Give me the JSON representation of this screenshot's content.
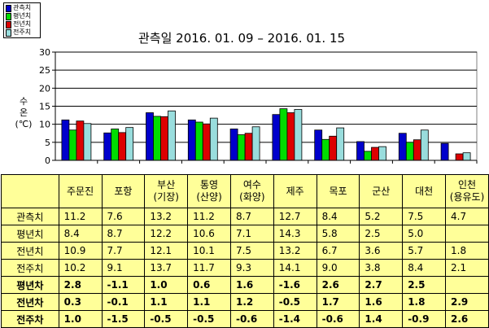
{
  "legend": [
    {
      "name": "관측치",
      "color": "#0000cc"
    },
    {
      "name": "평년치",
      "color": "#00dd00"
    },
    {
      "name": "전년치",
      "color": "#dd0000"
    },
    {
      "name": "전주치",
      "color": "#99dddd"
    }
  ],
  "chart_data": {
    "type": "bar",
    "title": "관측일 2016. 01. 09 – 2016. 01. 15",
    "ylabel": [
      "수",
      "온",
      "(℃)"
    ],
    "ylim": [
      0,
      30
    ],
    "yticks": [
      0,
      5,
      10,
      15,
      20,
      25,
      30
    ],
    "grid": true,
    "legend_position": "top-left",
    "categories": [
      "주문진",
      "포항",
      "부산(기장)",
      "통영(산양)",
      "여수(화양)",
      "제주",
      "목포",
      "군산",
      "대천",
      "인천(용유도)"
    ],
    "series": [
      {
        "name": "관측치",
        "color": "#0000cc",
        "values": [
          11.2,
          7.6,
          13.2,
          11.2,
          8.7,
          12.7,
          8.4,
          5.2,
          7.5,
          4.7
        ]
      },
      {
        "name": "평년치",
        "color": "#00dd00",
        "values": [
          8.4,
          8.7,
          12.2,
          10.6,
          7.1,
          14.3,
          5.8,
          2.5,
          5.0,
          null
        ]
      },
      {
        "name": "전년치",
        "color": "#dd0000",
        "values": [
          10.9,
          7.7,
          12.1,
          10.1,
          7.5,
          13.2,
          6.7,
          3.6,
          5.7,
          1.8
        ]
      },
      {
        "name": "전주치",
        "color": "#99dddd",
        "values": [
          10.2,
          9.1,
          13.7,
          11.7,
          9.3,
          14.1,
          9.0,
          3.8,
          8.4,
          2.1
        ]
      }
    ]
  },
  "table": {
    "columns": [
      [
        "주문진"
      ],
      [
        "포항"
      ],
      [
        "부산",
        "(기장)"
      ],
      [
        "통영",
        "(산양)"
      ],
      [
        "여수",
        "(화양)"
      ],
      [
        "제주"
      ],
      [
        "목포"
      ],
      [
        "군산"
      ],
      [
        "대천"
      ],
      [
        "인천",
        "(용유도)"
      ]
    ],
    "rows": [
      {
        "label": "관측치",
        "bold": false,
        "values": [
          "11.2",
          "7.6",
          "13.2",
          "11.2",
          "8.7",
          "12.7",
          "8.4",
          "5.2",
          "7.5",
          "4.7"
        ]
      },
      {
        "label": "평년치",
        "bold": false,
        "values": [
          "8.4",
          "8.7",
          "12.2",
          "10.6",
          "7.1",
          "14.3",
          "5.8",
          "2.5",
          "5.0",
          ""
        ]
      },
      {
        "label": "전년치",
        "bold": false,
        "values": [
          "10.9",
          "7.7",
          "12.1",
          "10.1",
          "7.5",
          "13.2",
          "6.7",
          "3.6",
          "5.7",
          "1.8"
        ]
      },
      {
        "label": "전주치",
        "bold": false,
        "values": [
          "10.2",
          "9.1",
          "13.7",
          "11.7",
          "9.3",
          "14.1",
          "9.0",
          "3.8",
          "8.4",
          "2.1"
        ]
      },
      {
        "label": "평년차",
        "bold": true,
        "values": [
          "2.8",
          "-1.1",
          "1.0",
          "0.6",
          "1.6",
          "-1.6",
          "2.6",
          "2.7",
          "2.5",
          ""
        ]
      },
      {
        "label": "전년차",
        "bold": true,
        "values": [
          "0.3",
          "-0.1",
          "1.1",
          "1.1",
          "1.2",
          "-0.5",
          "1.7",
          "1.6",
          "1.8",
          "2.9"
        ]
      },
      {
        "label": "전주차",
        "bold": true,
        "values": [
          "1.0",
          "-1.5",
          "-0.5",
          "-0.5",
          "-0.6",
          "-1.4",
          "-0.6",
          "1.4",
          "-0.9",
          "2.6"
        ]
      }
    ]
  }
}
